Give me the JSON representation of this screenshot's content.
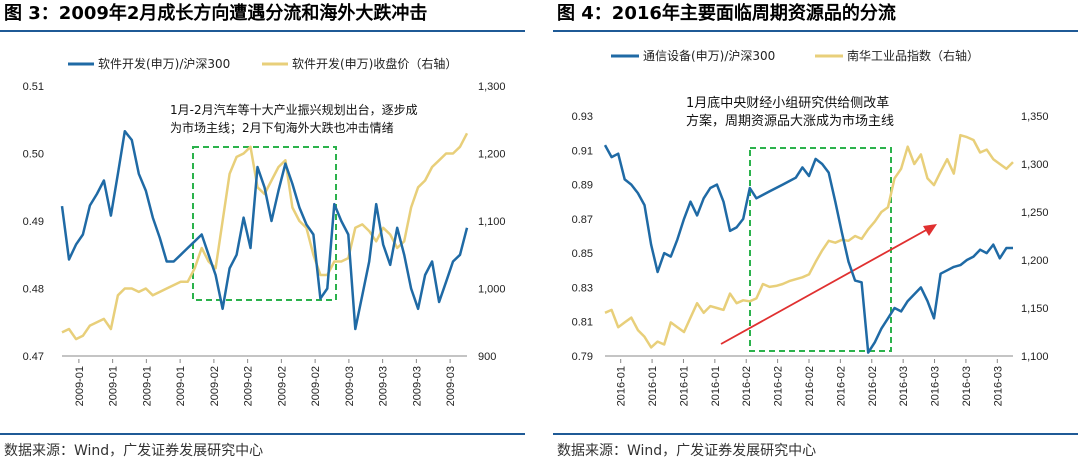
{
  "figures": [
    {
      "id": "left",
      "title": "图 3：2009年2月成长方向遭遇分流和海外大跌冲击",
      "source": "数据来源：Wind，广发证券发展研究中心",
      "legend": [
        "软件开发(申万)/沪深300",
        "软件开发(申万)收盘价（右轴）"
      ],
      "annotation": [
        "1月-2月汽车等十大产业振兴规划出台，逐步成",
        "为市场主线；2月下旬海外大跌也冲击情绪"
      ]
    },
    {
      "id": "right",
      "title": "图 4：2016年主要面临周期资源品的分流",
      "source": "数据来源：Wind，广发证券发展研究中心",
      "legend": [
        "通信设备(申万)/沪深300",
        "南华工业品指数（右轴）"
      ],
      "annotation": [
        "1月底中央财经小组研究供给侧改革",
        "方案，周期资源品大涨成为市场主线"
      ]
    }
  ],
  "colors": {
    "blue": "#1f6aa5",
    "gold": "#e8cf7a",
    "green_box": "#2bb24c",
    "arrow": "#e03030",
    "rule": "#1f5a96"
  },
  "chart_data": [
    {
      "type": "line",
      "title": "图 3：2009年2月成长方向遭遇分流和海外大跌冲击",
      "x_tick_labels": [
        "2009-01",
        "2009-01",
        "2009-01",
        "2009-01",
        "2009-02",
        "2009-02",
        "2009-02",
        "2009-02",
        "2009-03",
        "2009-03",
        "2009-03",
        "2009-03"
      ],
      "y_left": {
        "ticks": [
          "0.47",
          "0.48",
          "0.49",
          "0.50",
          "0.51"
        ],
        "min": 0.47,
        "max": 0.51
      },
      "y_right": {
        "ticks": [
          "900",
          "1,000",
          "1,100",
          "1,200",
          "1,300"
        ],
        "min": 900,
        "max": 1300
      },
      "series": [
        {
          "name": "软件开发(申万)/沪深300",
          "axis": "left",
          "values": [
            0.4922,
            0.4843,
            0.4865,
            0.488,
            0.4923,
            0.494,
            0.496,
            0.4908,
            0.497,
            0.5033,
            0.502,
            0.497,
            0.4945,
            0.4905,
            0.4875,
            0.484,
            0.484,
            0.485,
            0.486,
            0.487,
            0.488,
            0.485,
            0.482,
            0.477,
            0.483,
            0.485,
            0.4905,
            0.486,
            0.498,
            0.495,
            0.49,
            0.4945,
            0.4985,
            0.4955,
            0.492,
            0.4895,
            0.488,
            0.4785,
            0.48,
            0.4925,
            0.49,
            0.488,
            0.474,
            0.479,
            0.484,
            0.4925,
            0.4865,
            0.4835,
            0.489,
            0.485,
            0.48,
            0.477,
            0.482,
            0.484,
            0.478,
            0.481,
            0.484,
            0.485,
            0.489
          ]
        },
        {
          "name": "软件开发(申万)收盘价（右轴）",
          "axis": "right",
          "values": [
            935,
            940,
            925,
            930,
            945,
            950,
            955,
            940,
            990,
            1000,
            1000,
            995,
            1000,
            990,
            995,
            1000,
            1005,
            1010,
            1010,
            1030,
            1060,
            1040,
            1030,
            1100,
            1170,
            1195,
            1200,
            1210,
            1150,
            1140,
            1160,
            1180,
            1190,
            1120,
            1100,
            1090,
            1050,
            1020,
            1020,
            1040,
            1040,
            1045,
            1090,
            1095,
            1085,
            1070,
            1090,
            1080,
            1060,
            1070,
            1120,
            1150,
            1160,
            1180,
            1190,
            1200,
            1200,
            1210,
            1230
          ]
        }
      ],
      "legend_placement": "top",
      "grid": false
    },
    {
      "type": "line",
      "title": "图 4：2016年主要面临周期资源品的分流",
      "x_tick_labels": [
        "2016-01",
        "2016-01",
        "2016-01",
        "2016-01",
        "2016-02",
        "2016-02",
        "2016-02",
        "2016-02",
        "2016-02",
        "2016-03",
        "2016-03",
        "2016-03",
        "2016-03"
      ],
      "y_left": {
        "ticks": [
          "0.79",
          "0.81",
          "0.83",
          "0.85",
          "0.87",
          "0.89",
          "0.91",
          "0.93"
        ],
        "min": 0.79,
        "max": 0.93
      },
      "y_right": {
        "ticks": [
          "1,100",
          "1,150",
          "1,200",
          "1,250",
          "1,300",
          "1,350"
        ],
        "min": 1100,
        "max": 1350
      },
      "series": [
        {
          "name": "通信设备(申万)/沪深300",
          "axis": "left",
          "values": [
            0.913,
            0.906,
            0.908,
            0.893,
            0.89,
            0.885,
            0.878,
            0.855,
            0.839,
            0.85,
            0.848,
            0.858,
            0.87,
            0.88,
            0.872,
            0.882,
            0.888,
            0.89,
            0.88,
            0.863,
            0.865,
            0.87,
            0.888,
            0.882,
            0.884,
            0.886,
            0.888,
            0.89,
            0.892,
            0.894,
            0.9,
            0.895,
            0.905,
            0.902,
            0.897,
            0.88,
            0.862,
            0.845,
            0.834,
            0.833,
            0.792,
            0.798,
            0.806,
            0.812,
            0.818,
            0.816,
            0.822,
            0.826,
            0.83,
            0.822,
            0.812,
            0.838,
            0.84,
            0.842,
            0.843,
            0.846,
            0.848,
            0.852,
            0.85,
            0.855,
            0.847,
            0.853,
            0.853
          ]
        },
        {
          "name": "南华工业品指数（右轴）",
          "axis": "right",
          "values": [
            1145,
            1148,
            1130,
            1135,
            1140,
            1127,
            1120,
            1109,
            1115,
            1112,
            1135,
            1130,
            1125,
            1140,
            1155,
            1145,
            1152,
            1150,
            1148,
            1165,
            1155,
            1158,
            1157,
            1160,
            1175,
            1172,
            1173,
            1175,
            1178,
            1180,
            1182,
            1185,
            1198,
            1210,
            1220,
            1218,
            1221,
            1220,
            1225,
            1222,
            1232,
            1240,
            1250,
            1255,
            1285,
            1295,
            1318,
            1300,
            1310,
            1285,
            1278,
            1292,
            1305,
            1290,
            1330,
            1328,
            1325,
            1312,
            1315,
            1305,
            1300,
            1295,
            1302
          ]
        }
      ],
      "legend_placement": "top",
      "grid": false
    }
  ]
}
